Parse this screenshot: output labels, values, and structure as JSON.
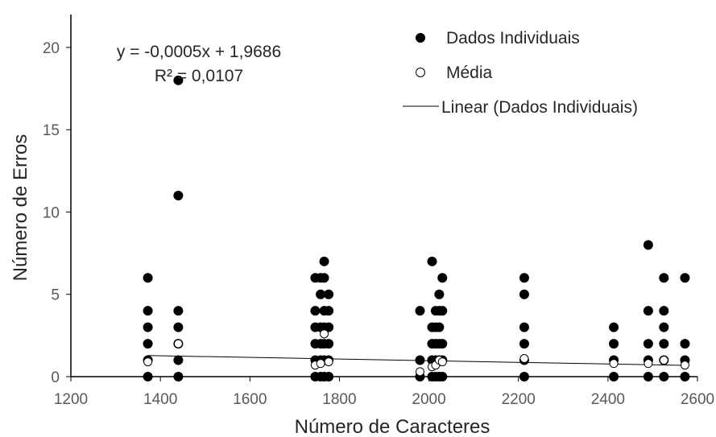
{
  "chart_data": {
    "type": "scatter",
    "xlabel": "Número de Caracteres",
    "ylabel": "Número de Erros",
    "xlim": [
      1200,
      2600
    ],
    "ylim": [
      0,
      22
    ],
    "xticks": [
      1200,
      1400,
      1600,
      1800,
      2000,
      2200,
      2400,
      2600
    ],
    "yticks": [
      0,
      5,
      10,
      15,
      20
    ],
    "grid": false,
    "legend_position": "top-right",
    "annotation": {
      "equation": "y = -0,0005x + 1,9686",
      "r_squared": "R² = 0,0107"
    },
    "series": [
      {
        "name": "Dados Individuais",
        "marker": "filled-circle",
        "color": "#000000",
        "points": [
          [
            1372,
            0
          ],
          [
            1372,
            1
          ],
          [
            1372,
            2
          ],
          [
            1372,
            3
          ],
          [
            1372,
            4
          ],
          [
            1372,
            6
          ],
          [
            1440,
            0
          ],
          [
            1440,
            1
          ],
          [
            1440,
            2
          ],
          [
            1440,
            3
          ],
          [
            1440,
            4
          ],
          [
            1440,
            11
          ],
          [
            1440,
            18
          ],
          [
            1746,
            0
          ],
          [
            1746,
            1
          ],
          [
            1746,
            2
          ],
          [
            1746,
            3
          ],
          [
            1746,
            4
          ],
          [
            1746,
            6
          ],
          [
            1758,
            0
          ],
          [
            1758,
            1
          ],
          [
            1758,
            2
          ],
          [
            1758,
            3
          ],
          [
            1758,
            5
          ],
          [
            1758,
            6
          ],
          [
            1766,
            0
          ],
          [
            1766,
            1
          ],
          [
            1766,
            2
          ],
          [
            1766,
            3
          ],
          [
            1766,
            4
          ],
          [
            1766,
            6
          ],
          [
            1766,
            7
          ],
          [
            1776,
            0
          ],
          [
            1776,
            1
          ],
          [
            1776,
            2
          ],
          [
            1776,
            3
          ],
          [
            1776,
            4
          ],
          [
            1776,
            5
          ],
          [
            1980,
            0
          ],
          [
            1980,
            1
          ],
          [
            1980,
            4
          ],
          [
            2007,
            0
          ],
          [
            2007,
            1
          ],
          [
            2007,
            2
          ],
          [
            2007,
            3
          ],
          [
            2007,
            7
          ],
          [
            2015,
            0
          ],
          [
            2015,
            1
          ],
          [
            2015,
            2
          ],
          [
            2015,
            3
          ],
          [
            2015,
            4
          ],
          [
            2023,
            0
          ],
          [
            2023,
            1
          ],
          [
            2023,
            2
          ],
          [
            2023,
            3
          ],
          [
            2023,
            4
          ],
          [
            2023,
            5
          ],
          [
            2030,
            0
          ],
          [
            2030,
            1
          ],
          [
            2030,
            2
          ],
          [
            2030,
            4
          ],
          [
            2030,
            6
          ],
          [
            2213,
            0
          ],
          [
            2213,
            1
          ],
          [
            2213,
            2
          ],
          [
            2213,
            3
          ],
          [
            2213,
            5
          ],
          [
            2213,
            6
          ],
          [
            2413,
            0
          ],
          [
            2413,
            1
          ],
          [
            2413,
            2
          ],
          [
            2413,
            3
          ],
          [
            2490,
            0
          ],
          [
            2490,
            1
          ],
          [
            2490,
            2
          ],
          [
            2490,
            4
          ],
          [
            2490,
            8
          ],
          [
            2525,
            0
          ],
          [
            2525,
            1
          ],
          [
            2525,
            2
          ],
          [
            2525,
            3
          ],
          [
            2525,
            4
          ],
          [
            2525,
            6
          ],
          [
            2572,
            0
          ],
          [
            2572,
            1
          ],
          [
            2572,
            2
          ],
          [
            2572,
            6
          ]
        ]
      },
      {
        "name": "Média",
        "marker": "open-circle",
        "color": "#000000",
        "points": [
          [
            1372,
            0.9
          ],
          [
            1440,
            2.0
          ],
          [
            1746,
            0.7
          ],
          [
            1758,
            0.8
          ],
          [
            1766,
            2.6
          ],
          [
            1776,
            0.9
          ],
          [
            1980,
            0.3
          ],
          [
            2007,
            0.6
          ],
          [
            2015,
            0.7
          ],
          [
            2023,
            1.0
          ],
          [
            2030,
            0.9
          ],
          [
            2213,
            1.1
          ],
          [
            2413,
            0.8
          ],
          [
            2490,
            0.8
          ],
          [
            2525,
            1.0
          ],
          [
            2572,
            0.7
          ]
        ]
      },
      {
        "name": "Linear (Dados Individuais)",
        "type": "line",
        "color": "#000000",
        "slope": -0.0005,
        "intercept": 1.9686,
        "x_range": [
          1372,
          2572
        ]
      }
    ]
  }
}
